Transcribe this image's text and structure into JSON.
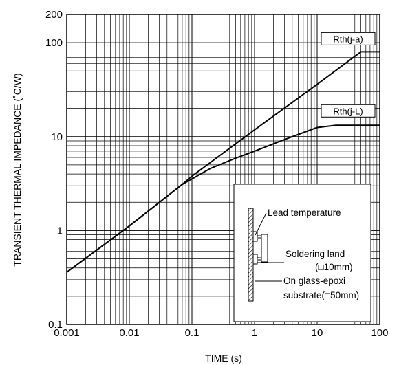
{
  "chart_data": {
    "type": "line",
    "xlabel": "TIME (s)",
    "ylabel": "TRANSIENT THERMAL IMPEDANCE (˚C/W)",
    "xscale": "log",
    "yscale": "log",
    "xlim": [
      0.001,
      100
    ],
    "ylim": [
      0.1,
      200
    ],
    "grid": true,
    "x_ticks": [
      "0.001",
      "0.01",
      "0.1",
      "1",
      "10",
      "100"
    ],
    "y_ticks": [
      "0.1",
      "1",
      "10",
      "100",
      "200"
    ],
    "series": [
      {
        "name": "Rth(j-a)",
        "x": [
          0.001,
          0.01,
          0.07,
          0.1,
          1,
          10,
          50,
          100
        ],
        "y": [
          0.36,
          1.12,
          3.1,
          3.8,
          11.8,
          36,
          80,
          80
        ]
      },
      {
        "name": "Rth(j-L)",
        "x": [
          0.001,
          0.01,
          0.07,
          0.2,
          0.5,
          1,
          3,
          10,
          20,
          100
        ],
        "y": [
          0.36,
          1.12,
          3.1,
          4.6,
          5.9,
          7.0,
          9.3,
          12.5,
          13.2,
          13.2
        ]
      }
    ],
    "inset": {
      "lead_label": "Lead temperature",
      "land_label": "Soldering land",
      "land_size": "(□10mm)",
      "substrate_label": "On glass-epoxi",
      "substrate_size": "substrate(□50mm)"
    }
  }
}
